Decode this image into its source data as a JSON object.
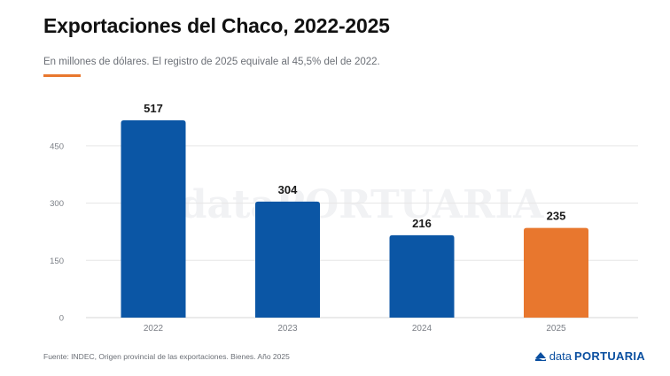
{
  "header": {
    "title": "Exportaciones del Chaco, 2022-2025",
    "subtitle": "En millones de dólares. El registro de 2025 equivale al 45,5% del de 2022."
  },
  "footer": {
    "source": "Fuente: INDEC, Origen provincial de las exportaciones. Bienes. Año 2025",
    "logo_part_a": "data",
    "logo_part_b": "PORTUARIA"
  },
  "watermark": "dataPORTUARIA",
  "colors": {
    "bar": "#0b56a5",
    "highlight": "#e8772e",
    "accent": "#e8772e",
    "grid": "#e6e6e6"
  },
  "chart_data": {
    "type": "bar",
    "categories": [
      "2022",
      "2023",
      "2024",
      "2025"
    ],
    "values": [
      517,
      304,
      216,
      235
    ],
    "value_labels": [
      "517",
      "304",
      "216",
      "235"
    ],
    "highlight_category": "2025",
    "ylim": [
      0,
      517
    ],
    "yticks": [
      0,
      150,
      300,
      450
    ],
    "ytick_labels": [
      "0",
      "150",
      "300",
      "450"
    ],
    "grid": true,
    "legend": "none",
    "xlabel": "",
    "ylabel": ""
  }
}
